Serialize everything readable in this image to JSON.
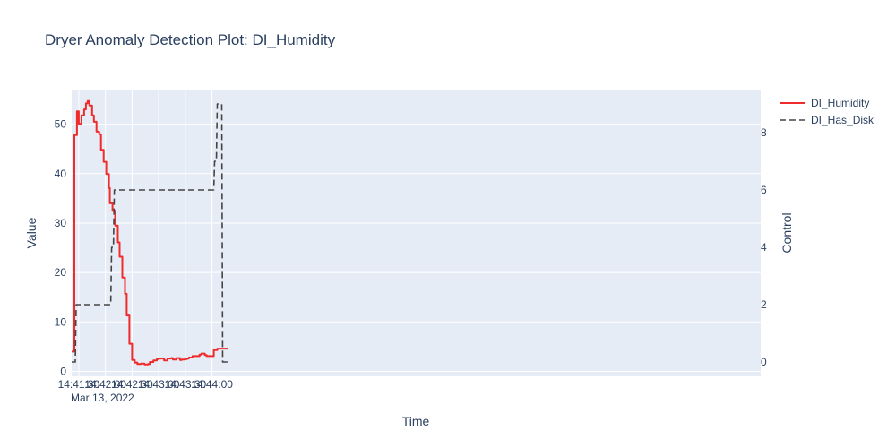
{
  "chart_data": {
    "type": "line",
    "title": "Dryer Anomaly Detection Plot: DI_Humidity",
    "xlabel": "Time",
    "ylabel": "Value",
    "y2label": "Control",
    "date_label": "Mar 13, 2022",
    "xlim_seconds": [
      82,
      858
    ],
    "ylim": [
      -1,
      57
    ],
    "y2lim": [
      -0.5,
      9.5
    ],
    "x_ticks": [
      {
        "s": 90,
        "label": "14:41:30"
      },
      {
        "s": 120,
        "label": "14:42:00"
      },
      {
        "s": 150,
        "label": "14:42:30"
      },
      {
        "s": 180,
        "label": "14:43:00"
      },
      {
        "s": 210,
        "label": "14:43:30"
      },
      {
        "s": 240,
        "label": "14:44:00"
      }
    ],
    "y_ticks": [
      0,
      10,
      20,
      30,
      40,
      50
    ],
    "y2_ticks": [
      0,
      2,
      4,
      6,
      8
    ],
    "legend": [
      "DI_Humidity",
      "DI_Has_Disk"
    ],
    "series": [
      {
        "name": "DI_Humidity",
        "axis": "y",
        "color": "#ef2b2b",
        "dash": "solid",
        "shape": "hv",
        "x_seconds": [
          82,
          84,
          85,
          87,
          88,
          89,
          90,
          92,
          93,
          95,
          96,
          97,
          98,
          99,
          100,
          101,
          102,
          104,
          105,
          106,
          107,
          109,
          110,
          111,
          113,
          114,
          115,
          117,
          118,
          119,
          121,
          122,
          124,
          125,
          126,
          128,
          129,
          131,
          132,
          134,
          135,
          136,
          138,
          139,
          140,
          142,
          143,
          144,
          146,
          147,
          149,
          150,
          152,
          153,
          155,
          156,
          158,
          160,
          162,
          164,
          166,
          168,
          170,
          172,
          174,
          176,
          178,
          180,
          182,
          184,
          186,
          188,
          190,
          192,
          194,
          196,
          198,
          200,
          202,
          204,
          206,
          208,
          210,
          212,
          214,
          216,
          218,
          220,
          222,
          224,
          226,
          228,
          230,
          232,
          234,
          236,
          238,
          240,
          242,
          244,
          246,
          248,
          250,
          252,
          254,
          256,
          258
        ],
        "values": [
          4,
          4,
          47.8,
          47.8,
          52.6,
          52.6,
          50.1,
          50.1,
          51.8,
          51.8,
          53,
          53,
          54.2,
          54.2,
          54.7,
          54.7,
          53.8,
          53.8,
          51.8,
          51.8,
          50.5,
          50.5,
          48.5,
          48.5,
          48,
          48,
          44.8,
          44.8,
          42.4,
          42.4,
          39.9,
          39.9,
          37.1,
          34,
          34,
          32.5,
          32.5,
          29.5,
          29.5,
          26.1,
          26.1,
          23.2,
          23.2,
          19,
          19,
          15.7,
          15.7,
          11.3,
          11.3,
          5.6,
          5.6,
          2.3,
          2.3,
          1.8,
          1.8,
          1.5,
          1.5,
          1.6,
          1.6,
          1.4,
          1.4,
          1.5,
          1.9,
          1.9,
          2.2,
          2.2,
          2.5,
          2.6,
          2.6,
          2.6,
          2.2,
          2.2,
          2.6,
          2.6,
          2.7,
          2.4,
          2.4,
          2.7,
          2.7,
          2.3,
          2.4,
          2.4,
          2.5,
          2.6,
          2.8,
          2.8,
          3.1,
          3.1,
          3.1,
          3.1,
          3.4,
          3.6,
          3.6,
          3.3,
          3.1,
          3.1,
          3.1,
          3.1,
          4.3,
          4.3,
          4.6,
          4.6,
          4.6,
          4.6,
          4.6,
          4.6,
          4.6
        ]
      },
      {
        "name": "DI_Has_Disk",
        "axis": "y2",
        "color": "#444444",
        "dash": "dash",
        "shape": "linear",
        "x_seconds": [
          82,
          86,
          87,
          126,
          127,
          129,
          130,
          242,
          243,
          245,
          246,
          251,
          252,
          258
        ],
        "values": [
          0,
          0,
          2,
          2,
          4,
          4,
          6,
          6,
          7,
          7,
          9,
          9,
          0,
          0
        ]
      }
    ]
  }
}
